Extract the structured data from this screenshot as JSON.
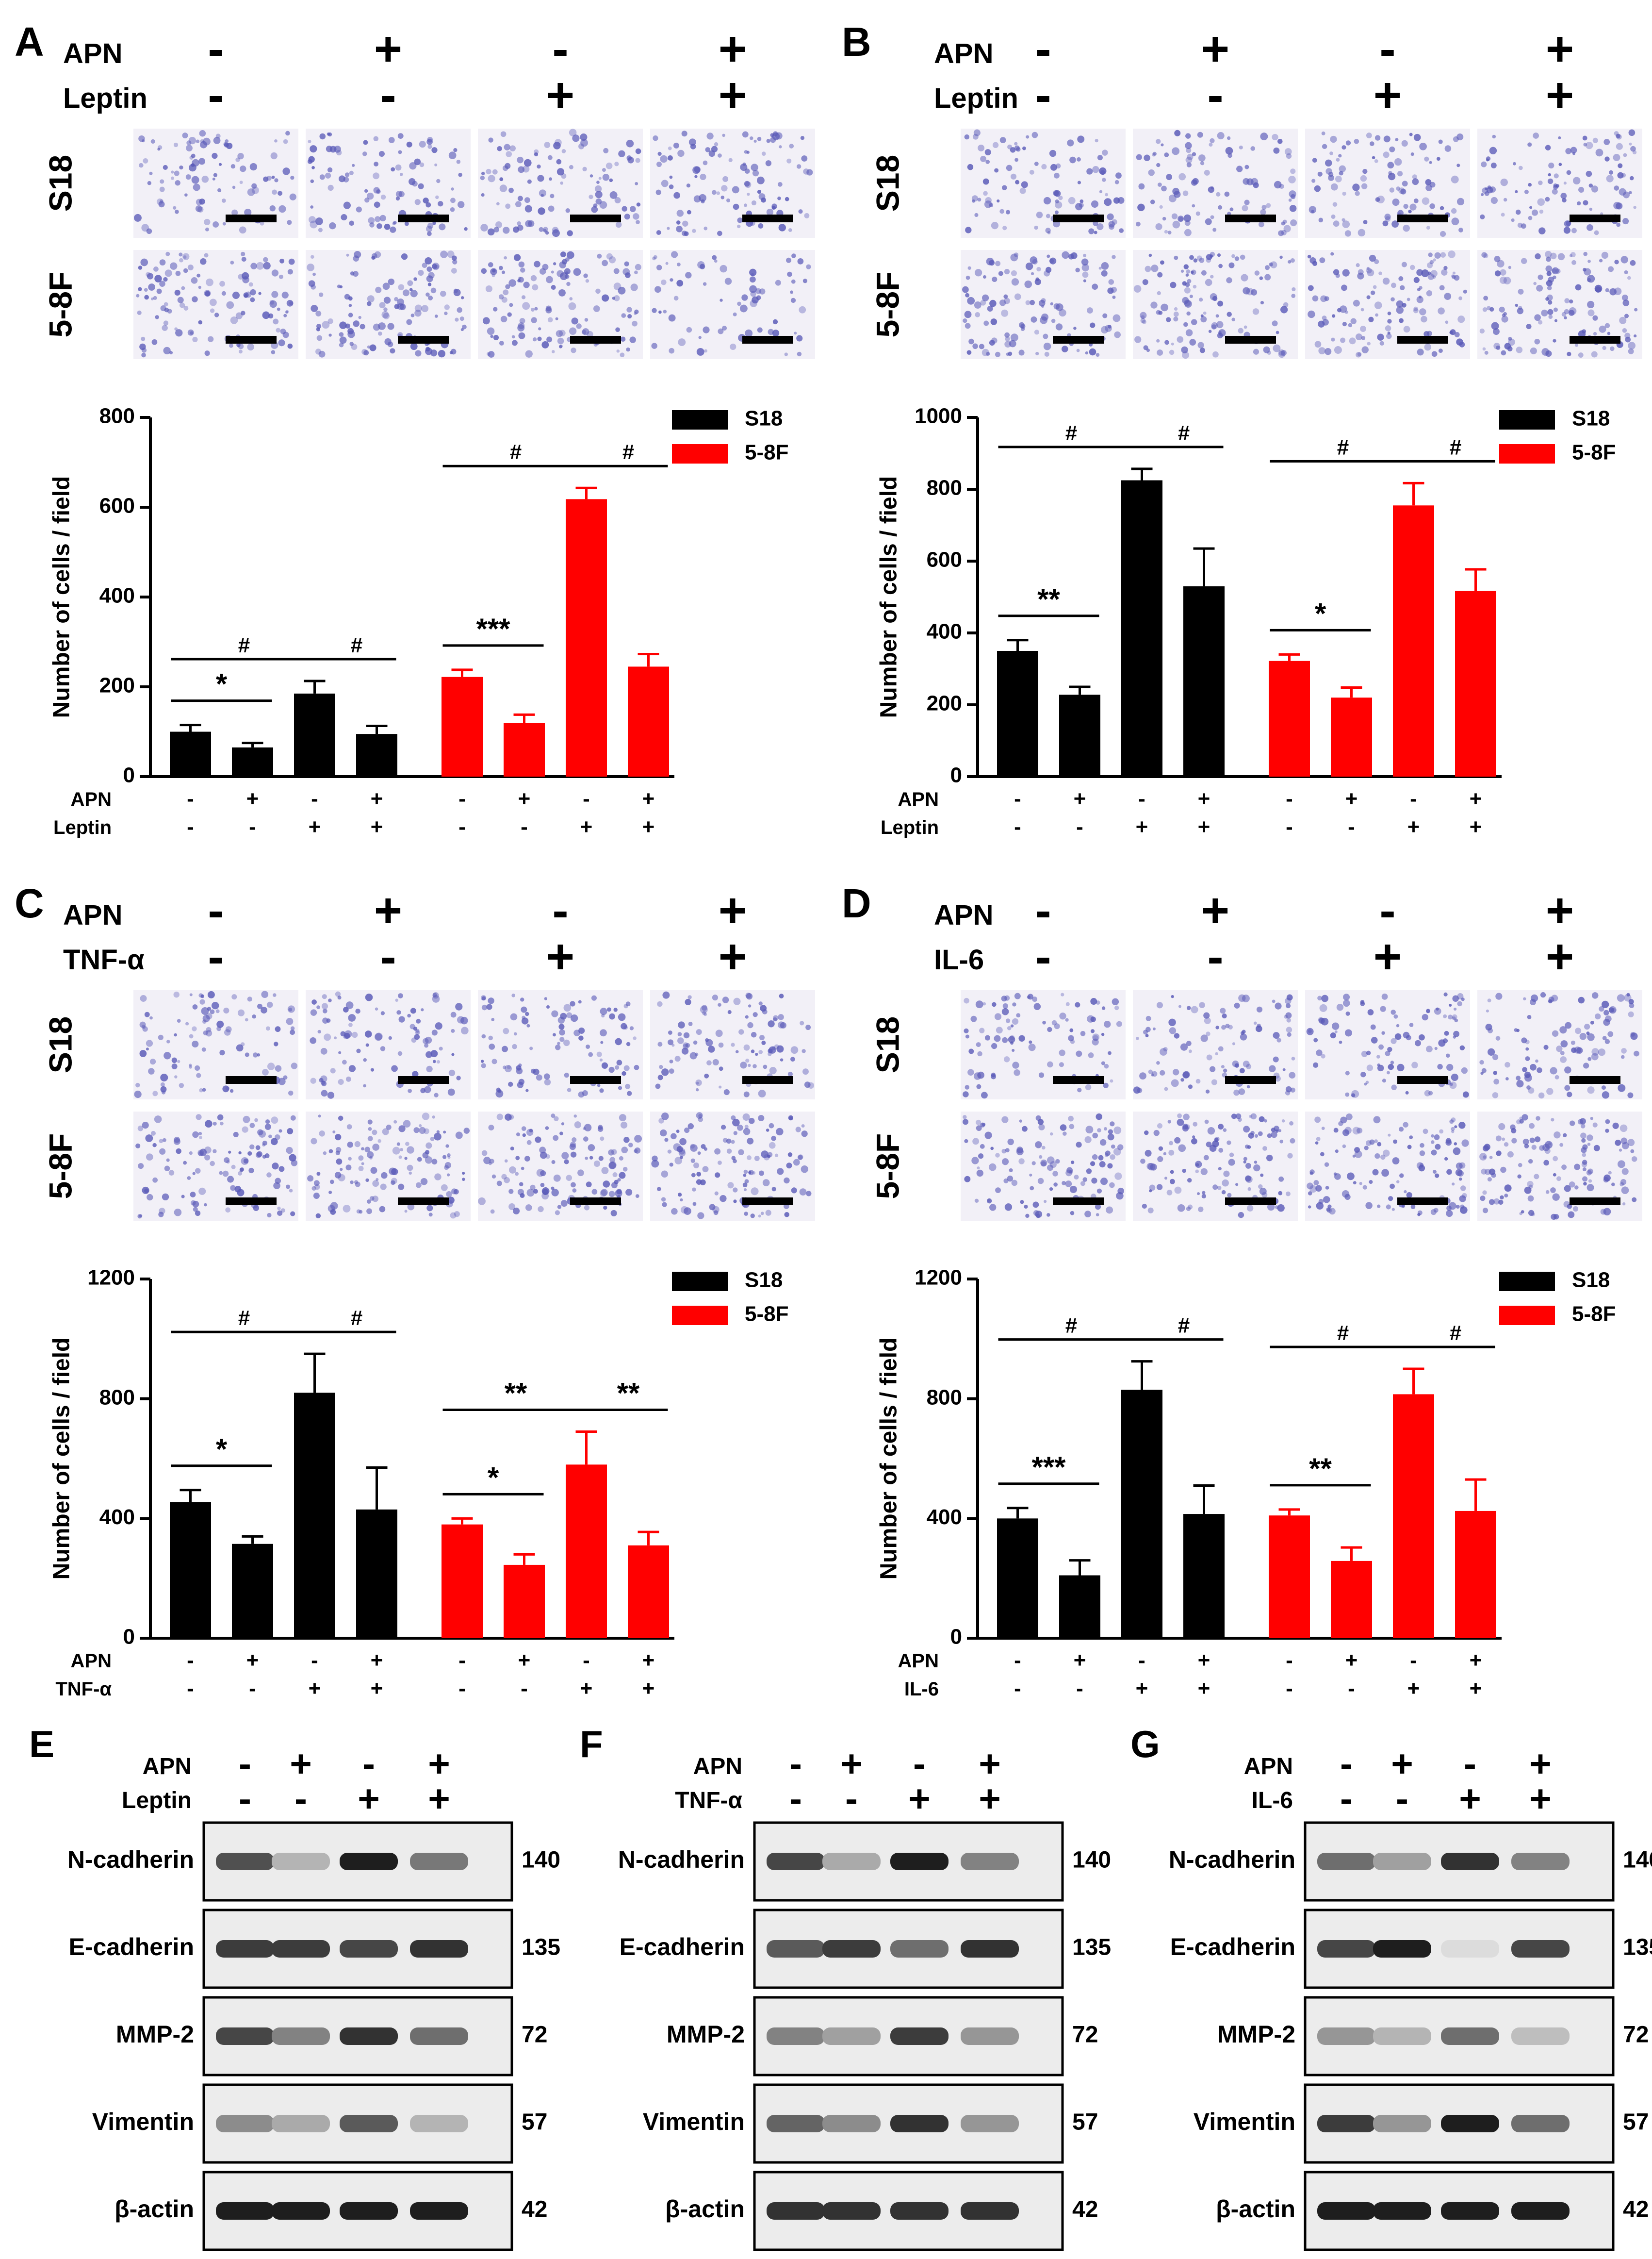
{
  "colors": {
    "s18": "#000000",
    "f58": "#ff0000",
    "micro_bg": "#f2f0f7",
    "micro_cell": "#5a5ab8",
    "scale_bar": "#000000"
  },
  "panels": [
    {
      "letter": "A",
      "treatment": "Leptin",
      "micro_rows": [
        "S18",
        "5-8F"
      ],
      "conditions": {
        "apn": [
          "-",
          "+",
          "-",
          "+"
        ],
        "treatment": [
          "-",
          "-",
          "+",
          "+"
        ]
      },
      "chart_data": {
        "type": "bar",
        "title": "",
        "ylabel": "Number of cells / field",
        "xlabel": "",
        "ylim": [
          0,
          800
        ],
        "yticks": [
          "0",
          "200",
          "400",
          "600",
          "800"
        ],
        "legend": "top-right",
        "categories": [
          "-/-",
          "+/-",
          "-/+",
          "+/+"
        ],
        "series": [
          {
            "name": "S18",
            "values": [
              100,
              65,
              185,
              95
            ],
            "errors": [
              15,
              10,
              28,
              18
            ]
          },
          {
            "name": "5-8F",
            "values": [
              222,
              120,
              618,
              245
            ],
            "errors": [
              16,
              18,
              25,
              28
            ]
          }
        ],
        "annotations": [
          "*",
          "***",
          "#",
          "#",
          "#",
          "#"
        ],
        "row_labels": [
          "APN",
          "Leptin"
        ]
      }
    },
    {
      "letter": "B",
      "treatment": "Leptin",
      "micro_rows": [
        "S18",
        "5-8F"
      ],
      "conditions": {
        "apn": [
          "-",
          "+",
          "-",
          "+"
        ],
        "treatment": [
          "-",
          "-",
          "+",
          "+"
        ]
      },
      "chart_data": {
        "type": "bar",
        "title": "",
        "ylabel": "Number of cells / field",
        "xlabel": "",
        "ylim": [
          0,
          1000
        ],
        "yticks": [
          "0",
          "200",
          "400",
          "600",
          "800",
          "1000"
        ],
        "legend": "top-right",
        "categories": [
          "-/-",
          "+/-",
          "-/+",
          "+/+"
        ],
        "series": [
          {
            "name": "S18",
            "values": [
              350,
              228,
              825,
              530
            ],
            "errors": [
              30,
              22,
              32,
              105
            ]
          },
          {
            "name": "5-8F",
            "values": [
              322,
              220,
              755,
              517
            ],
            "errors": [
              18,
              28,
              62,
              60
            ]
          }
        ],
        "annotations": [
          "**",
          "*",
          "#",
          "#",
          "#",
          "#"
        ],
        "row_labels": [
          "APN",
          "Leptin"
        ]
      }
    },
    {
      "letter": "C",
      "treatment": "TNF-α",
      "micro_rows": [
        "S18",
        "5-8F"
      ],
      "conditions": {
        "apn": [
          "-",
          "+",
          "-",
          "+"
        ],
        "treatment": [
          "-",
          "-",
          "+",
          "+"
        ]
      },
      "chart_data": {
        "type": "bar",
        "title": "",
        "ylabel": "Number of cells / field",
        "xlabel": "",
        "ylim": [
          0,
          1200
        ],
        "yticks": [
          "0",
          "400",
          "800",
          "1200"
        ],
        "legend": "top-right",
        "categories": [
          "-/-",
          "+/-",
          "-/+",
          "+/+"
        ],
        "series": [
          {
            "name": "S18",
            "values": [
              455,
              315,
              820,
              430
            ],
            "errors": [
              40,
              25,
              130,
              140
            ]
          },
          {
            "name": "5-8F",
            "values": [
              380,
              245,
              580,
              310
            ],
            "errors": [
              20,
              35,
              110,
              45
            ]
          }
        ],
        "annotations": [
          "*",
          "*",
          "**",
          "**",
          "#",
          "#"
        ],
        "row_labels": [
          "APN",
          "TNF-α"
        ]
      }
    },
    {
      "letter": "D",
      "treatment": "IL-6",
      "micro_rows": [
        "S18",
        "5-8F"
      ],
      "conditions": {
        "apn": [
          "-",
          "+",
          "-",
          "+"
        ],
        "treatment": [
          "-",
          "-",
          "+",
          "+"
        ]
      },
      "chart_data": {
        "type": "bar",
        "title": "",
        "ylabel": "Number of cells / field",
        "xlabel": "",
        "ylim": [
          0,
          1200
        ],
        "yticks": [
          "0",
          "400",
          "800",
          "1200"
        ],
        "legend": "top-right",
        "categories": [
          "-/-",
          "+/-",
          "-/+",
          "+/+"
        ],
        "series": [
          {
            "name": "S18",
            "values": [
              400,
              210,
              830,
              415
            ],
            "errors": [
              35,
              50,
              95,
              95
            ]
          },
          {
            "name": "5-8F",
            "values": [
              410,
              258,
              815,
              425
            ],
            "errors": [
              20,
              45,
              85,
              105
            ]
          }
        ],
        "annotations": [
          "***",
          "**",
          "#",
          "#",
          "#",
          "#"
        ],
        "row_labels": [
          "APN",
          "IL-6"
        ]
      }
    }
  ],
  "blots": [
    {
      "letter": "E",
      "treatment": "Leptin",
      "apn": [
        "-",
        "+",
        "-",
        "+"
      ],
      "trt": [
        "-",
        "-",
        "+",
        "+"
      ]
    },
    {
      "letter": "F",
      "treatment": "TNF-α",
      "apn": [
        "-",
        "+",
        "-",
        "+"
      ],
      "trt": [
        "-",
        "-",
        "+",
        "+"
      ]
    },
    {
      "letter": "G",
      "treatment": "IL-6",
      "apn": [
        "-",
        "+",
        "-",
        "+"
      ],
      "trt": [
        "-",
        "-",
        "+",
        "+"
      ]
    }
  ],
  "blot_proteins": [
    "N-cadherin",
    "E-cadherin",
    "MMP-2",
    "Vimentin",
    "β-actin"
  ],
  "blot_sizes": [
    "140",
    "135",
    "72",
    "57",
    "42"
  ],
  "blot_intensity": {
    "E": [
      [
        0.75,
        0.25,
        1.0,
        0.55
      ],
      [
        0.85,
        0.85,
        0.8,
        0.9
      ],
      [
        0.8,
        0.5,
        0.9,
        0.6
      ],
      [
        0.45,
        0.3,
        0.7,
        0.25
      ],
      [
        1.0,
        1.0,
        1.0,
        1.0
      ]
    ],
    "F": [
      [
        0.8,
        0.3,
        1.0,
        0.5
      ],
      [
        0.7,
        0.85,
        0.6,
        0.9
      ],
      [
        0.5,
        0.35,
        0.85,
        0.4
      ],
      [
        0.65,
        0.45,
        0.9,
        0.4
      ],
      [
        0.9,
        0.9,
        0.9,
        0.9
      ]
    ],
    "G": [
      [
        0.6,
        0.35,
        0.9,
        0.5
      ],
      [
        0.8,
        1.0,
        0.05,
        0.8
      ],
      [
        0.4,
        0.25,
        0.6,
        0.2
      ],
      [
        0.85,
        0.4,
        1.0,
        0.6
      ],
      [
        1.0,
        1.0,
        1.0,
        1.0
      ]
    ]
  }
}
